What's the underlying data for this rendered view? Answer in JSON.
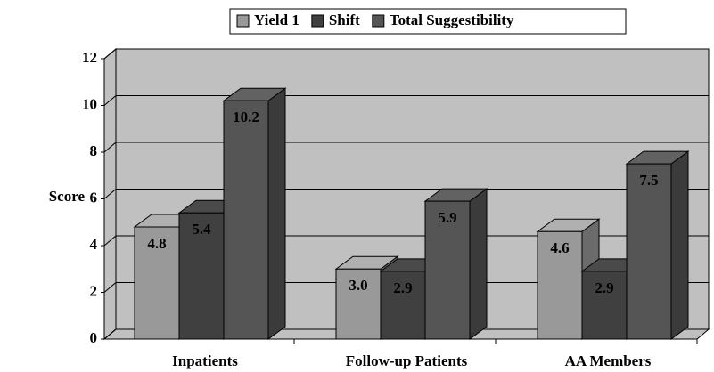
{
  "chart_data": {
    "type": "bar3d",
    "y_label": "Score",
    "categories": [
      "Inpatients",
      "Follow-up Patients",
      "AA Members"
    ],
    "series": [
      {
        "name": "Yield 1",
        "color": "#999999",
        "values": [
          4.8,
          3.0,
          4.6
        ],
        "value_labels": [
          "4.8",
          "3.0",
          "4.6"
        ]
      },
      {
        "name": "Shift",
        "color": "#404040",
        "values": [
          5.4,
          2.9,
          2.9
        ],
        "value_labels": [
          "5.4",
          "2.9",
          "2.9"
        ]
      },
      {
        "name": "Total Suggestibility",
        "color": "#555555",
        "values": [
          10.2,
          5.9,
          7.5
        ],
        "value_labels": [
          "10.2",
          "5.9",
          "7.5"
        ]
      }
    ],
    "ylim": [
      0,
      12
    ],
    "yticks": [
      0,
      2,
      4,
      6,
      8,
      10,
      12
    ],
    "grid": true,
    "legend": "top"
  }
}
